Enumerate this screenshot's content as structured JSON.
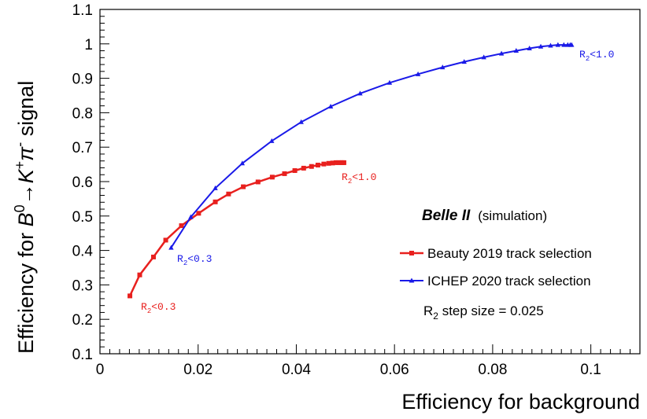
{
  "chart_data": {
    "type": "line",
    "xlabel": "Efficiency for background",
    "ylabel_parts": {
      "prefix": "Efficiency for ",
      "b": "B",
      "b_sup": "0",
      "arrow": "→",
      "k": "K",
      "k_sup": "+",
      "pi": "π",
      "pi_sup": "-",
      "suffix": " signal"
    },
    "xlim": [
      0,
      0.11
    ],
    "ylim": [
      0.1,
      1.1
    ],
    "x_ticks": [
      0,
      0.02,
      0.04,
      0.06,
      0.08,
      0.1
    ],
    "x_tick_labels": [
      "0",
      "0.02",
      "0.04",
      "0.06",
      "0.08",
      "0.1"
    ],
    "y_ticks": [
      0.1,
      0.2,
      0.3,
      0.4,
      0.5,
      0.6,
      0.7,
      0.8,
      0.9,
      1.0,
      1.1
    ],
    "y_tick_labels": [
      "0.1",
      "0.2",
      "0.3",
      "0.4",
      "0.5",
      "0.6",
      "0.7",
      "0.8",
      "0.9",
      "1",
      "1.1"
    ],
    "series": [
      {
        "name": "Beauty 2019 track selection",
        "color": "#e8201e",
        "marker": "square",
        "x": [
          0.0061,
          0.0081,
          0.0109,
          0.0134,
          0.0166,
          0.0201,
          0.0235,
          0.0262,
          0.0292,
          0.0322,
          0.0351,
          0.0376,
          0.0397,
          0.0415,
          0.0431,
          0.0444,
          0.0456,
          0.0466,
          0.0474,
          0.0481,
          0.0486,
          0.0491,
          0.0494,
          0.0497
        ],
        "y": [
          0.268,
          0.329,
          0.381,
          0.43,
          0.472,
          0.508,
          0.541,
          0.564,
          0.585,
          0.599,
          0.613,
          0.623,
          0.632,
          0.639,
          0.644,
          0.648,
          0.651,
          0.653,
          0.654,
          0.655,
          0.655,
          0.655,
          0.655,
          0.655
        ]
      },
      {
        "name": "ICHEP 2020 track selection",
        "color": "#1a1ae8",
        "marker": "triangle",
        "x": [
          0.0145,
          0.0185,
          0.0235,
          0.029,
          0.035,
          0.041,
          0.047,
          0.053,
          0.059,
          0.0648,
          0.0698,
          0.0742,
          0.0782,
          0.0818,
          0.0848,
          0.0875,
          0.0898,
          0.0918,
          0.0933,
          0.0945,
          0.0953,
          0.0958,
          0.0961
        ],
        "y": [
          0.408,
          0.497,
          0.581,
          0.653,
          0.718,
          0.773,
          0.818,
          0.856,
          0.887,
          0.912,
          0.932,
          0.948,
          0.961,
          0.972,
          0.98,
          0.987,
          0.992,
          0.995,
          0.997,
          0.997,
          0.997,
          0.997,
          0.997
        ]
      }
    ],
    "annotations": [
      {
        "r": "R",
        "sub": "2",
        "rest": "<0.3",
        "color": "#e8201e"
      },
      {
        "r": "R",
        "sub": "2",
        "rest": "<1.0",
        "color": "#e8201e"
      },
      {
        "r": "R",
        "sub": "2",
        "rest": "<0.3",
        "color": "#1a1ae8"
      },
      {
        "r": "R",
        "sub": "2",
        "rest": "<1.0",
        "color": "#1a1ae8"
      }
    ],
    "legend": {
      "experiment": "Belle II",
      "note": "(simulation)",
      "step_r": "R",
      "step_sub": "2",
      "step_rest": " step size = 0.025"
    }
  }
}
